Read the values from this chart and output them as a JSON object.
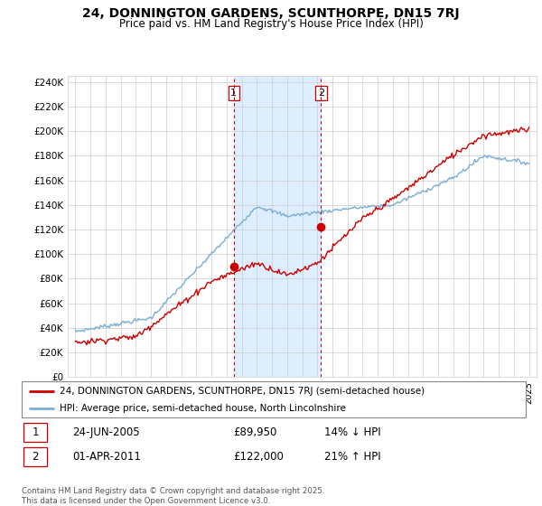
{
  "title": "24, DONNINGTON GARDENS, SCUNTHORPE, DN15 7RJ",
  "subtitle": "Price paid vs. HM Land Registry's House Price Index (HPI)",
  "legend_entry1": "24, DONNINGTON GARDENS, SCUNTHORPE, DN15 7RJ (semi-detached house)",
  "legend_entry2": "HPI: Average price, semi-detached house, North Lincolnshire",
  "footer": "Contains HM Land Registry data © Crown copyright and database right 2025.\nThis data is licensed under the Open Government Licence v3.0.",
  "sale1_date": "24-JUN-2005",
  "sale1_price": "£89,950",
  "sale1_hpi": "14% ↓ HPI",
  "sale1_year": 2005.48,
  "sale1_value": 89950,
  "sale2_date": "01-APR-2011",
  "sale2_price": "£122,000",
  "sale2_hpi": "21% ↑ HPI",
  "sale2_year": 2011.25,
  "sale2_value": 122000,
  "price_color": "#cc0000",
  "hpi_color": "#7aadd4",
  "shade_color": "#ddeeff",
  "vline_color": "#cc0000",
  "ylim": [
    0,
    245000
  ],
  "yticks": [
    0,
    20000,
    40000,
    60000,
    80000,
    100000,
    120000,
    140000,
    160000,
    180000,
    200000,
    220000,
    240000
  ],
  "xlim_start": 1994.5,
  "xlim_end": 2025.5
}
